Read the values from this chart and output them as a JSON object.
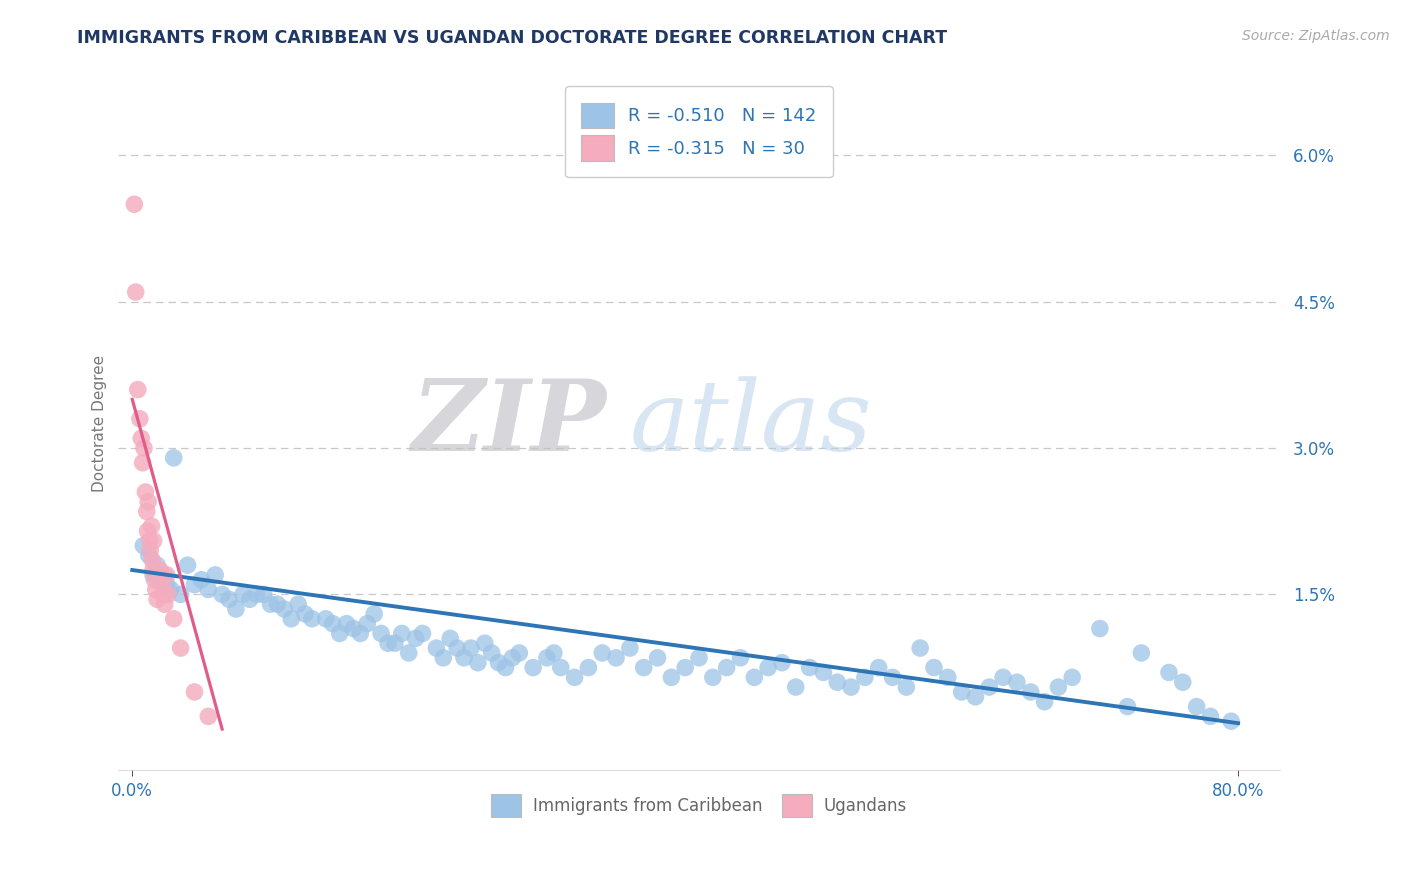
{
  "title": "IMMIGRANTS FROM CARIBBEAN VS UGANDAN DOCTORATE DEGREE CORRELATION CHART",
  "source": "Source: ZipAtlas.com",
  "ylabel": "Doctorate Degree",
  "xlim": [
    -1.0,
    83.0
  ],
  "ylim": [
    -0.3,
    6.8
  ],
  "xtick_positions": [
    0.0,
    80.0
  ],
  "xtick_labels": [
    "0.0%",
    "80.0%"
  ],
  "ytick_right_vals": [
    0.0,
    1.5,
    3.0,
    4.5,
    6.0
  ],
  "ytick_right_labels": [
    "",
    "1.5%",
    "3.0%",
    "4.5%",
    "6.0%"
  ],
  "grid_vals": [
    1.5,
    3.0,
    4.5,
    6.0
  ],
  "legend_R1": "-0.510",
  "legend_N1": "142",
  "legend_R2": "-0.315",
  "legend_N2": "30",
  "legend_label1": "Immigrants from Caribbean",
  "legend_label2": "Ugandans",
  "blue_dot_color": "#9DC3E6",
  "pink_dot_color": "#F4ACBE",
  "blue_line_color": "#2E75B6",
  "pink_line_color": "#E05C8A",
  "title_color": "#203864",
  "axis_label_color": "#2E75B6",
  "legend_text_color": "#2E75B6",
  "bg_color": "#FFFFFF",
  "grid_color": "#C8C8C8",
  "blue_scatter_x": [
    0.8,
    1.2,
    1.5,
    1.8,
    2.0,
    2.3,
    2.5,
    2.8,
    3.0,
    3.5,
    4.0,
    4.5,
    5.0,
    5.5,
    6.0,
    6.5,
    7.0,
    7.5,
    8.0,
    8.5,
    9.0,
    9.5,
    10.0,
    10.5,
    11.0,
    11.5,
    12.0,
    12.5,
    13.0,
    14.0,
    14.5,
    15.0,
    15.5,
    16.0,
    16.5,
    17.0,
    17.5,
    18.0,
    18.5,
    19.0,
    19.5,
    20.0,
    20.5,
    21.0,
    22.0,
    22.5,
    23.0,
    23.5,
    24.0,
    24.5,
    25.0,
    25.5,
    26.0,
    26.5,
    27.0,
    27.5,
    28.0,
    29.0,
    30.0,
    30.5,
    31.0,
    32.0,
    33.0,
    34.0,
    35.0,
    36.0,
    37.0,
    38.0,
    39.0,
    40.0,
    41.0,
    42.0,
    43.0,
    44.0,
    45.0,
    46.0,
    47.0,
    48.0,
    49.0,
    50.0,
    51.0,
    52.0,
    53.0,
    54.0,
    55.0,
    56.0,
    57.0,
    58.0,
    59.0,
    60.0,
    61.0,
    62.0,
    63.0,
    64.0,
    65.0,
    66.0,
    67.0,
    68.0,
    70.0,
    72.0,
    73.0,
    75.0,
    76.0,
    77.0,
    78.0,
    79.5
  ],
  "blue_scatter_y": [
    2.0,
    1.9,
    1.7,
    1.8,
    1.65,
    1.7,
    1.6,
    1.55,
    2.9,
    1.5,
    1.8,
    1.6,
    1.65,
    1.55,
    1.7,
    1.5,
    1.45,
    1.35,
    1.5,
    1.45,
    1.5,
    1.5,
    1.4,
    1.4,
    1.35,
    1.25,
    1.4,
    1.3,
    1.25,
    1.25,
    1.2,
    1.1,
    1.2,
    1.15,
    1.1,
    1.2,
    1.3,
    1.1,
    1.0,
    1.0,
    1.1,
    0.9,
    1.05,
    1.1,
    0.95,
    0.85,
    1.05,
    0.95,
    0.85,
    0.95,
    0.8,
    1.0,
    0.9,
    0.8,
    0.75,
    0.85,
    0.9,
    0.75,
    0.85,
    0.9,
    0.75,
    0.65,
    0.75,
    0.9,
    0.85,
    0.95,
    0.75,
    0.85,
    0.65,
    0.75,
    0.85,
    0.65,
    0.75,
    0.85,
    0.65,
    0.75,
    0.8,
    0.55,
    0.75,
    0.7,
    0.6,
    0.55,
    0.65,
    0.75,
    0.65,
    0.55,
    0.95,
    0.75,
    0.65,
    0.5,
    0.45,
    0.55,
    0.65,
    0.6,
    0.5,
    0.4,
    0.55,
    0.65,
    1.15,
    0.35,
    0.9,
    0.7,
    0.6,
    0.35,
    0.25,
    0.2
  ],
  "pink_scatter_x": [
    0.15,
    0.25,
    0.4,
    0.55,
    0.65,
    0.75,
    0.85,
    0.95,
    1.05,
    1.1,
    1.15,
    1.25,
    1.3,
    1.4,
    1.45,
    1.5,
    1.55,
    1.6,
    1.7,
    1.8,
    2.0,
    2.15,
    2.25,
    2.35,
    2.5,
    2.6,
    3.0,
    3.5,
    4.5,
    5.5
  ],
  "pink_scatter_y": [
    5.5,
    4.6,
    3.6,
    3.3,
    3.1,
    2.85,
    3.0,
    2.55,
    2.35,
    2.15,
    2.45,
    2.05,
    1.95,
    2.2,
    1.85,
    1.75,
    2.05,
    1.65,
    1.55,
    1.45,
    1.75,
    1.6,
    1.5,
    1.4,
    1.7,
    1.5,
    1.25,
    0.95,
    0.5,
    0.25
  ],
  "blue_trend_x0": 0.0,
  "blue_trend_x1": 80.0,
  "blue_trend_y0": 1.75,
  "blue_trend_y1": 0.18,
  "pink_trend_x0": 0.0,
  "pink_trend_x1": 6.5,
  "pink_trend_y0": 3.5,
  "pink_trend_y1": 0.12
}
